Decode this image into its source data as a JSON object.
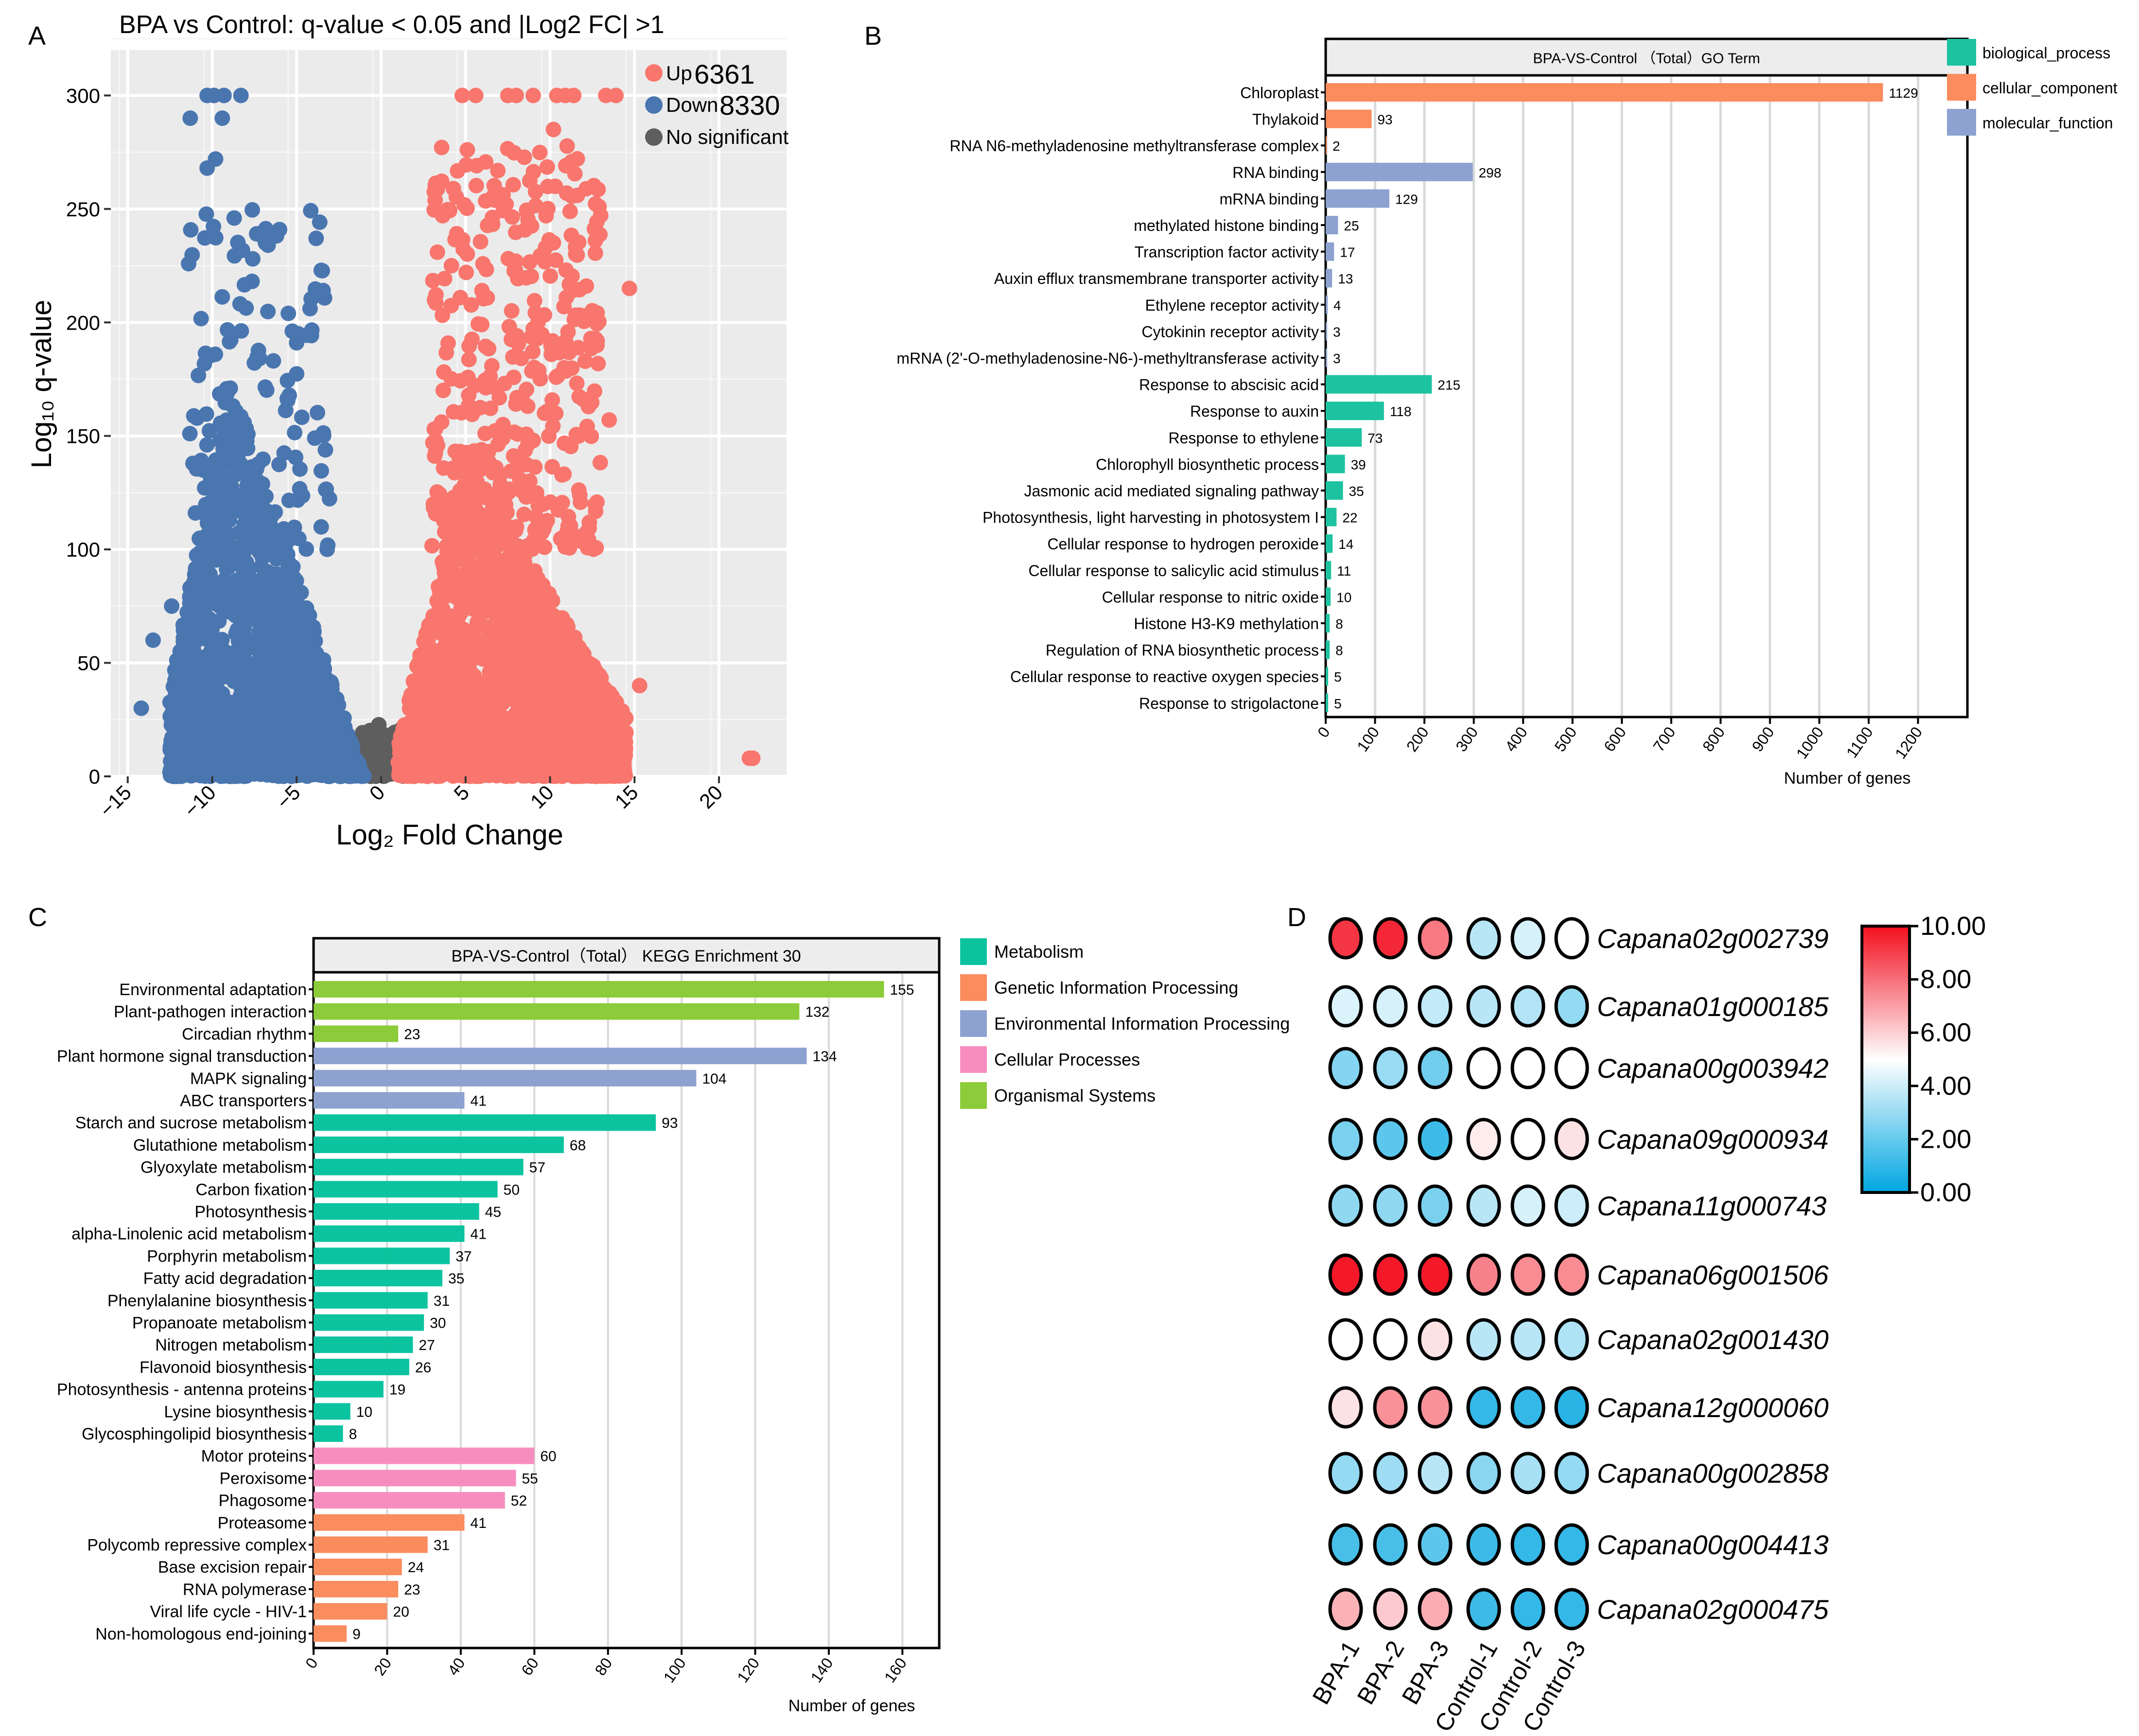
{
  "panels": {
    "a": "A",
    "b": "B",
    "c": "C",
    "d": "D"
  },
  "chart_data": [
    {
      "id": "volcano",
      "type": "scatter",
      "title": "BPA vs Control: q-value < 0.05 and |Log2 FC| >1",
      "xlabel": "Log₂ Fold Change",
      "ylabel": "Log₁₀ q-value",
      "xlim": [
        -16,
        24
      ],
      "ylim": [
        0,
        320
      ],
      "xticks": [
        -15,
        -10,
        -5,
        0,
        5,
        10,
        15,
        20
      ],
      "yticks": [
        0,
        50,
        100,
        150,
        200,
        250,
        300
      ],
      "legend": [
        {
          "label": "Up",
          "count": "6361",
          "color": "#F8766D"
        },
        {
          "label": "Down",
          "count": "8330",
          "color": "#4A76B0"
        },
        {
          "label": "No significant",
          "count": "",
          "color": "#5E5E5E"
        }
      ],
      "series": {
        "up_count": 6361,
        "down_count": 8330,
        "up_saturated_x": [
          4.8,
          5.6,
          7.5,
          8.0,
          9.0,
          10.4,
          10.9,
          11.4,
          13.3,
          13.9
        ],
        "down_saturated_x": [
          -10.3,
          -9.9,
          -9.3,
          -8.3
        ],
        "up_outliers": [
          [
            22.0,
            8
          ],
          [
            21.8,
            8
          ],
          [
            14.7,
            215
          ],
          [
            13.5,
            157
          ],
          [
            15.3,
            40
          ],
          [
            12.9,
            251
          ],
          [
            10.2,
            285
          ]
        ],
        "down_outliers": [
          [
            -11.3,
            290
          ],
          [
            -10.3,
            268
          ],
          [
            -9.8,
            272
          ],
          [
            -9.4,
            290
          ],
          [
            -7.6,
            228
          ],
          [
            -8.7,
            246
          ],
          [
            -14.2,
            30
          ],
          [
            -13.5,
            60
          ],
          [
            -12.4,
            75
          ]
        ]
      }
    },
    {
      "id": "go",
      "type": "bar",
      "orientation": "horizontal",
      "title": "BPA-VS-Control （Total）GO Term",
      "xlabel": "Number of genes",
      "xlim": [
        0,
        1300
      ],
      "xticks": [
        0,
        100,
        200,
        300,
        400,
        500,
        600,
        700,
        800,
        900,
        1000,
        1100,
        1200
      ],
      "legend": [
        {
          "label": "biological_process",
          "color": "#1DC3A0"
        },
        {
          "label": "cellular_component",
          "color": "#FA8C5E"
        },
        {
          "label": "molecular_function",
          "color": "#8DA2D0"
        }
      ],
      "categories": [
        "Chloroplast",
        "Thylakoid",
        "RNA N6-methyladenosine methyltransferase complex",
        "RNA binding",
        "mRNA binding",
        "methylated histone binding",
        "Transcription factor activity",
        "Auxin efflux transmembrane transporter activity",
        "Ethylene receptor activity",
        "Cytokinin receptor activity",
        "mRNA (2'-O-methyladenosine-N6-)-methyltransferase activity",
        "Response to abscisic acid",
        "Response to auxin",
        "Response to ethylene",
        "Chlorophyll biosynthetic process",
        "Jasmonic acid mediated signaling pathway",
        "Photosynthesis, light harvesting in photosystem I",
        "Cellular response to hydrogen peroxide",
        "Cellular response to salicylic acid stimulus",
        "Cellular response to nitric oxide",
        "Histone H3-K9 methylation",
        "Regulation of RNA biosynthetic process",
        "Cellular response to reactive oxygen species",
        "Response to strigolactone"
      ],
      "values": [
        1129,
        93,
        2,
        298,
        129,
        25,
        17,
        13,
        4,
        3,
        3,
        215,
        118,
        73,
        39,
        35,
        22,
        14,
        11,
        10,
        8,
        8,
        5,
        5
      ],
      "groups": [
        1,
        1,
        1,
        2,
        2,
        2,
        2,
        2,
        2,
        2,
        2,
        0,
        0,
        0,
        0,
        0,
        0,
        0,
        0,
        0,
        0,
        0,
        0,
        0
      ]
    },
    {
      "id": "kegg",
      "type": "bar",
      "orientation": "horizontal",
      "title": "BPA-VS-Control（Total） KEGG Enrichment 30",
      "xlabel": "Number of genes",
      "xlim": [
        0,
        170
      ],
      "xticks": [
        0,
        20,
        40,
        60,
        80,
        100,
        120,
        140,
        160
      ],
      "legend": [
        {
          "label": "Metabolism",
          "color": "#0CC3A0"
        },
        {
          "label": "Genetic Information Processing",
          "color": "#FA8C5E"
        },
        {
          "label": "Environmental Information Processing",
          "color": "#8DA2D0"
        },
        {
          "label": "Cellular Processes",
          "color": "#F78DBF"
        },
        {
          "label": "Organismal Systems",
          "color": "#8CCB3A"
        }
      ],
      "categories": [
        "Environmental adaptation",
        "Plant-pathogen interaction",
        "Circadian rhythm",
        "Plant hormone signal transduction",
        "MAPK signaling",
        "ABC transporters",
        "Starch and sucrose metabolism",
        "Glutathione metabolism",
        "Glyoxylate  metabolism",
        "Carbon fixation",
        "Photosynthesis",
        "alpha-Linolenic acid metabolism",
        "Porphyrin metabolism",
        "Fatty acid degradation",
        "Phenylalanine biosynthesis",
        "Propanoate metabolism",
        "Nitrogen metabolism",
        "Flavonoid biosynthesis",
        "Photosynthesis - antenna proteins",
        "Lysine biosynthesis",
        "Glycosphingolipid biosynthesis",
        "Motor proteins",
        "Peroxisome",
        "Phagosome",
        "Proteasome",
        "Polycomb repressive complex",
        "Base excision repair",
        "RNA polymerase",
        "Viral life cycle - HIV-1",
        "Non-homologous end-joining"
      ],
      "values": [
        155,
        132,
        23,
        134,
        104,
        41,
        93,
        68,
        57,
        50,
        45,
        41,
        37,
        35,
        31,
        30,
        27,
        26,
        19,
        10,
        8,
        60,
        55,
        52,
        41,
        31,
        24,
        23,
        20,
        9
      ],
      "groups": [
        4,
        4,
        4,
        2,
        2,
        2,
        0,
        0,
        0,
        0,
        0,
        0,
        0,
        0,
        0,
        0,
        0,
        0,
        0,
        0,
        0,
        3,
        3,
        3,
        1,
        1,
        1,
        1,
        1,
        1
      ]
    },
    {
      "id": "heatmap",
      "type": "heatmap",
      "columns": [
        "BPA-1",
        "BPA-2",
        "BPA-3",
        "Control-1",
        "Control-2",
        "Control-3"
      ],
      "rows": [
        "Capana02g002739",
        "Capana01g000185",
        "Capana00g003942",
        "Capana09g000934",
        "Capana11g000743",
        "Capana06g001506",
        "Capana02g001430",
        "Capana12g000060",
        "Capana00g002858",
        "Capana00g004413",
        "Capana02g000475"
      ],
      "values": [
        [
          9.2,
          9.5,
          7.8,
          3.6,
          4.2,
          5.0
        ],
        [
          4.3,
          4.2,
          3.8,
          3.6,
          3.5,
          2.9
        ],
        [
          2.6,
          3.0,
          2.2,
          5.0,
          5.0,
          5.0
        ],
        [
          2.4,
          1.8,
          1.2,
          5.4,
          5.0,
          5.6
        ],
        [
          2.8,
          2.8,
          2.4,
          3.6,
          4.2,
          4.0
        ],
        [
          9.8,
          9.8,
          9.8,
          7.6,
          7.4,
          7.4
        ],
        [
          5.0,
          5.0,
          5.6,
          3.6,
          3.6,
          3.4
        ],
        [
          5.6,
          7.3,
          7.3,
          1.0,
          1.0,
          0.8
        ],
        [
          2.9,
          3.1,
          3.6,
          2.7,
          3.3,
          2.9
        ],
        [
          1.4,
          1.4,
          1.8,
          1.2,
          1.0,
          1.0
        ],
        [
          6.6,
          6.1,
          6.7,
          1.2,
          1.0,
          1.0
        ]
      ],
      "colorbar": {
        "min": 0,
        "max": 10,
        "ticks": [
          "10.00",
          "8.00",
          "6.00",
          "4.00",
          "2.00",
          "0.00"
        ],
        "low": "#00A6E1",
        "mid": "#FFFFFF",
        "high": "#F20F1F"
      }
    }
  ]
}
